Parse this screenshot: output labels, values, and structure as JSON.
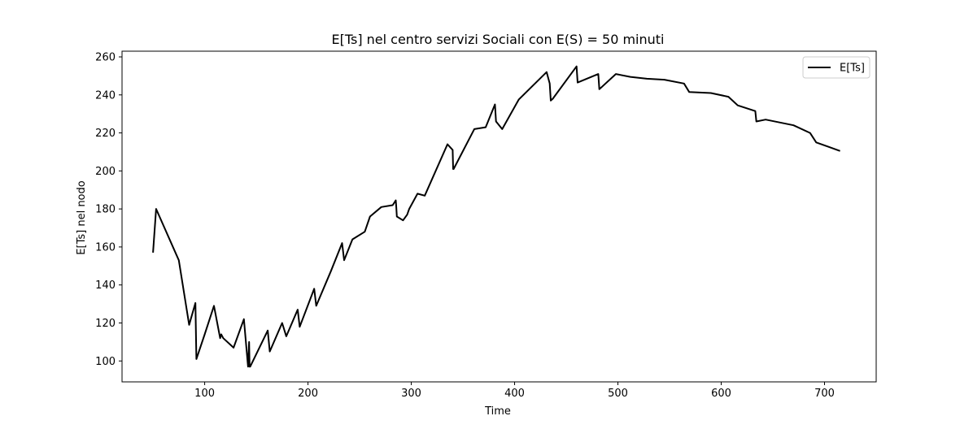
{
  "chart_data": {
    "type": "line",
    "title": "E[Ts] nel centro servizi Sociali con E(S) = 50 minuti",
    "xlabel": "Time",
    "ylabel": "E[Ts] nel nodo",
    "xlim": [
      20,
      750
    ],
    "ylim": [
      89,
      263
    ],
    "xticks": [
      100,
      200,
      300,
      400,
      500,
      600,
      700
    ],
    "yticks": [
      100,
      120,
      140,
      160,
      180,
      200,
      220,
      240,
      260
    ],
    "legend_position": "upper-right",
    "grid": false,
    "series": [
      {
        "name": "E[Ts]",
        "color": "#000000",
        "x": [
          50,
          53,
          75,
          85,
          91,
          92,
          100,
          109,
          115,
          116,
          118,
          128,
          138,
          142,
          143,
          143.5,
          144,
          161,
          163,
          175,
          179,
          190,
          192,
          206,
          208,
          222,
          233,
          235,
          243,
          255,
          260,
          271,
          282,
          285,
          285.5,
          286,
          292,
          296,
          298,
          306,
          313,
          335,
          340,
          340.5,
          341,
          361,
          372,
          381,
          382,
          388,
          404,
          431,
          434,
          435,
          437,
          460,
          461,
          481,
          482,
          498,
          512,
          528,
          545,
          564,
          569,
          590,
          607,
          616,
          633,
          634,
          643,
          670,
          686,
          692,
          715
        ],
        "values": [
          157,
          180,
          153,
          119,
          130.5,
          101,
          114,
          129,
          112,
          114,
          112,
          107,
          122,
          97,
          110,
          97,
          97,
          116,
          105,
          120,
          113,
          127,
          118,
          138,
          129,
          147,
          162,
          153,
          164,
          168,
          176,
          181,
          182,
          184.5,
          181,
          176,
          174,
          177,
          180,
          188,
          187,
          214,
          211,
          201,
          201,
          222,
          223,
          235,
          226,
          222,
          237.5,
          252,
          246,
          237,
          238,
          255,
          246.5,
          251,
          243,
          251,
          249.5,
          248.5,
          248,
          246,
          241.5,
          241,
          239,
          234.5,
          231.5,
          226,
          227,
          224,
          220,
          215,
          210.5
        ]
      }
    ]
  }
}
